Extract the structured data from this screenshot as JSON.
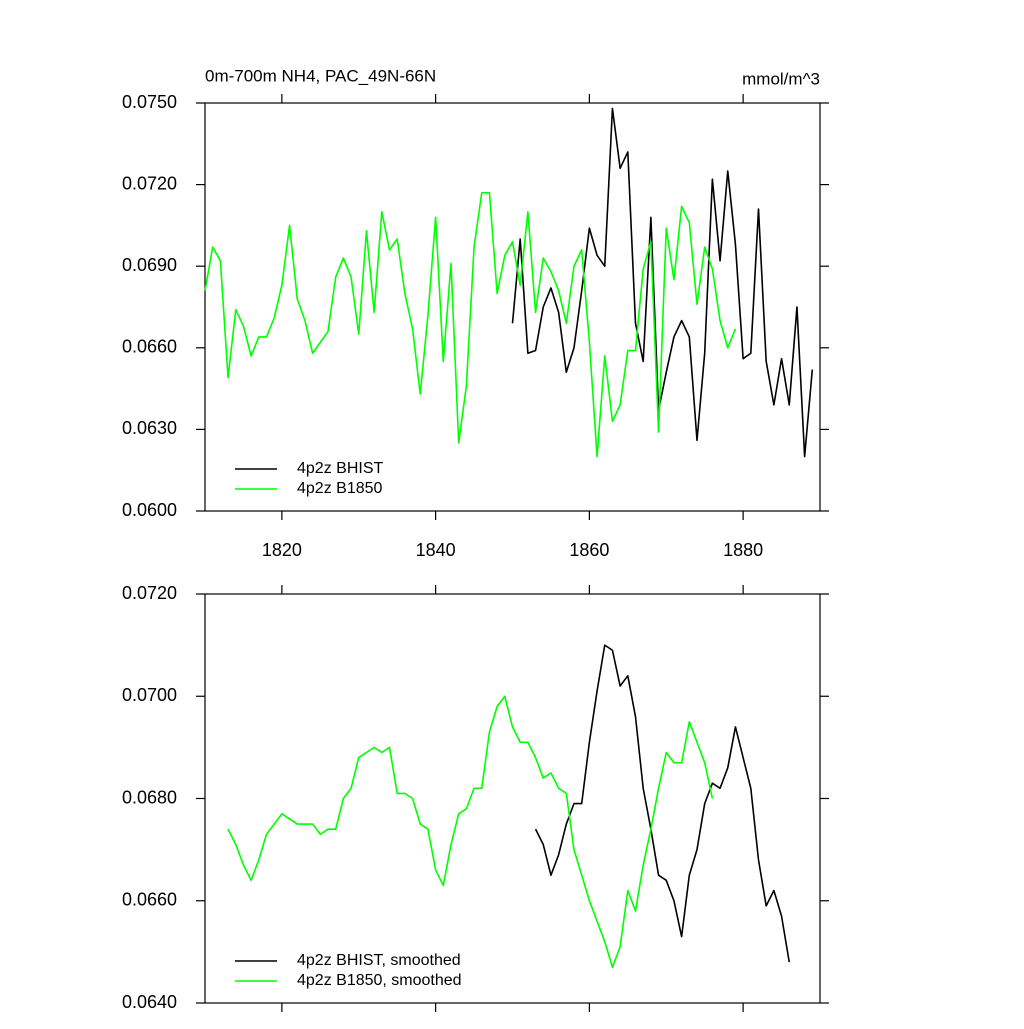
{
  "chart_data": [
    {
      "type": "line",
      "title": "0m-700m NH4, PAC_49N-66N",
      "units": "mmol/m^3",
      "xlim": [
        1810,
        1890
      ],
      "xticks": [
        1820,
        1840,
        1860,
        1880
      ],
      "ylim": [
        0.06,
        0.075
      ],
      "yticks": [
        {
          "value": 0.06,
          "label": "0.0600"
        },
        {
          "value": 0.063,
          "label": "0.0630"
        },
        {
          "value": 0.066,
          "label": "0.0660"
        },
        {
          "value": 0.069,
          "label": "0.0690"
        },
        {
          "value": 0.072,
          "label": "0.0720"
        },
        {
          "value": 0.075,
          "label": "0.0750"
        }
      ],
      "legend": "lower left",
      "series": [
        {
          "name": "4p2z BHIST",
          "color": "#000000",
          "x": [
            1850,
            1851,
            1852,
            1853,
            1854,
            1855,
            1856,
            1857,
            1858,
            1859,
            1860,
            1861,
            1862,
            1863,
            1864,
            1865,
            1866,
            1867,
            1868,
            1869,
            1870,
            1871,
            1872,
            1873,
            1874,
            1875,
            1876,
            1877,
            1878,
            1879,
            1880,
            1881,
            1882,
            1883,
            1884,
            1885,
            1886,
            1887,
            1888,
            1889
          ],
          "values": [
            0.0669,
            0.07,
            0.0658,
            0.0659,
            0.0675,
            0.0682,
            0.0673,
            0.0651,
            0.066,
            0.0681,
            0.0704,
            0.0694,
            0.069,
            0.0748,
            0.0726,
            0.0732,
            0.0669,
            0.0655,
            0.0708,
            0.0637,
            0.0651,
            0.0664,
            0.067,
            0.0664,
            0.0626,
            0.0658,
            0.0722,
            0.0692,
            0.0725,
            0.0698,
            0.0656,
            0.0658,
            0.0711,
            0.0655,
            0.0639,
            0.0656,
            0.0639,
            0.0675,
            0.062,
            0.0652
          ]
        },
        {
          "name": "4p2z B1850",
          "color": "#00ff00",
          "x": [
            1810,
            1811,
            1812,
            1813,
            1814,
            1815,
            1816,
            1817,
            1818,
            1819,
            1820,
            1821,
            1822,
            1823,
            1824,
            1825,
            1826,
            1827,
            1828,
            1829,
            1830,
            1831,
            1832,
            1833,
            1834,
            1835,
            1836,
            1837,
            1838,
            1839,
            1840,
            1841,
            1842,
            1843,
            1844,
            1845,
            1846,
            1847,
            1848,
            1849,
            1850,
            1851,
            1852,
            1853,
            1854,
            1855,
            1856,
            1857,
            1858,
            1859,
            1860,
            1861,
            1862,
            1863,
            1864,
            1865,
            1866,
            1867,
            1868,
            1869,
            1870,
            1871,
            1872,
            1873,
            1874,
            1875,
            1876,
            1877,
            1878,
            1879
          ],
          "values": [
            0.0681,
            0.0697,
            0.0692,
            0.0649,
            0.0674,
            0.0668,
            0.0657,
            0.0664,
            0.0664,
            0.0671,
            0.0683,
            0.0705,
            0.0678,
            0.067,
            0.0658,
            0.0662,
            0.0666,
            0.0686,
            0.0693,
            0.0686,
            0.0665,
            0.0703,
            0.0673,
            0.071,
            0.0696,
            0.07,
            0.068,
            0.0667,
            0.0643,
            0.0672,
            0.0708,
            0.0655,
            0.0691,
            0.0625,
            0.0646,
            0.0697,
            0.0717,
            0.0717,
            0.068,
            0.0694,
            0.0699,
            0.0683,
            0.071,
            0.0673,
            0.0693,
            0.0688,
            0.0681,
            0.0669,
            0.069,
            0.0696,
            0.0662,
            0.062,
            0.0657,
            0.0633,
            0.0639,
            0.0659,
            0.0659,
            0.0689,
            0.0699,
            0.0629,
            0.0704,
            0.0685,
            0.0712,
            0.0706,
            0.0676,
            0.0697,
            0.0689,
            0.067,
            0.066,
            0.0667
          ]
        }
      ]
    },
    {
      "type": "line",
      "xlim": [
        1810,
        1890
      ],
      "xticks": [
        1820,
        1840,
        1860,
        1880
      ],
      "xtick_labels": false,
      "ylim": [
        0.064,
        0.072
      ],
      "yticks": [
        {
          "value": 0.064,
          "label": "0.0640"
        },
        {
          "value": 0.066,
          "label": "0.0660"
        },
        {
          "value": 0.068,
          "label": "0.0680"
        },
        {
          "value": 0.07,
          "label": "0.0700"
        },
        {
          "value": 0.072,
          "label": "0.0720"
        }
      ],
      "legend": "lower left",
      "series": [
        {
          "name": "4p2z BHIST, smoothed",
          "color": "#000000",
          "x": [
            1853,
            1854,
            1855,
            1856,
            1857,
            1858,
            1859,
            1860,
            1861,
            1862,
            1863,
            1864,
            1865,
            1866,
            1867,
            1868,
            1869,
            1870,
            1871,
            1872,
            1873,
            1874,
            1875,
            1876,
            1877,
            1878,
            1879,
            1880,
            1881,
            1882,
            1883,
            1884,
            1885,
            1886
          ],
          "values": [
            0.0674,
            0.0671,
            0.0665,
            0.0669,
            0.0675,
            0.0679,
            0.0679,
            0.0691,
            0.0701,
            0.071,
            0.0709,
            0.0702,
            0.0704,
            0.0696,
            0.0682,
            0.0674,
            0.0665,
            0.0664,
            0.066,
            0.0653,
            0.0665,
            0.067,
            0.0679,
            0.0683,
            0.0682,
            0.0686,
            0.0694,
            0.0688,
            0.0682,
            0.0668,
            0.0659,
            0.0662,
            0.0657,
            0.0648
          ]
        },
        {
          "name": "4p2z B1850, smoothed",
          "color": "#00ff00",
          "x": [
            1813,
            1814,
            1815,
            1816,
            1817,
            1818,
            1819,
            1820,
            1821,
            1822,
            1823,
            1824,
            1825,
            1826,
            1827,
            1828,
            1829,
            1830,
            1831,
            1832,
            1833,
            1834,
            1835,
            1836,
            1837,
            1838,
            1839,
            1840,
            1841,
            1842,
            1843,
            1844,
            1845,
            1846,
            1847,
            1848,
            1849,
            1850,
            1851,
            1852,
            1853,
            1854,
            1855,
            1856,
            1857,
            1858,
            1859,
            1860,
            1861,
            1862,
            1863,
            1864,
            1865,
            1866,
            1867,
            1868,
            1869,
            1870,
            1871,
            1872,
            1873,
            1874,
            1875,
            1876
          ],
          "values": [
            0.0674,
            0.0671,
            0.0667,
            0.0664,
            0.0668,
            0.0673,
            0.0675,
            0.0677,
            0.0676,
            0.0675,
            0.0675,
            0.0675,
            0.0673,
            0.0674,
            0.0674,
            0.068,
            0.0682,
            0.0688,
            0.0689,
            0.069,
            0.0689,
            0.069,
            0.0681,
            0.0681,
            0.068,
            0.0675,
            0.0674,
            0.0666,
            0.0663,
            0.0671,
            0.0677,
            0.0678,
            0.0682,
            0.0682,
            0.0693,
            0.0698,
            0.07,
            0.0694,
            0.0691,
            0.0691,
            0.0688,
            0.0684,
            0.0685,
            0.0682,
            0.0681,
            0.067,
            0.0665,
            0.066,
            0.0656,
            0.0652,
            0.0647,
            0.0651,
            0.0662,
            0.0658,
            0.0667,
            0.0674,
            0.0682,
            0.0689,
            0.0687,
            0.0687,
            0.0695,
            0.0691,
            0.0687,
            0.068
          ]
        }
      ]
    }
  ]
}
